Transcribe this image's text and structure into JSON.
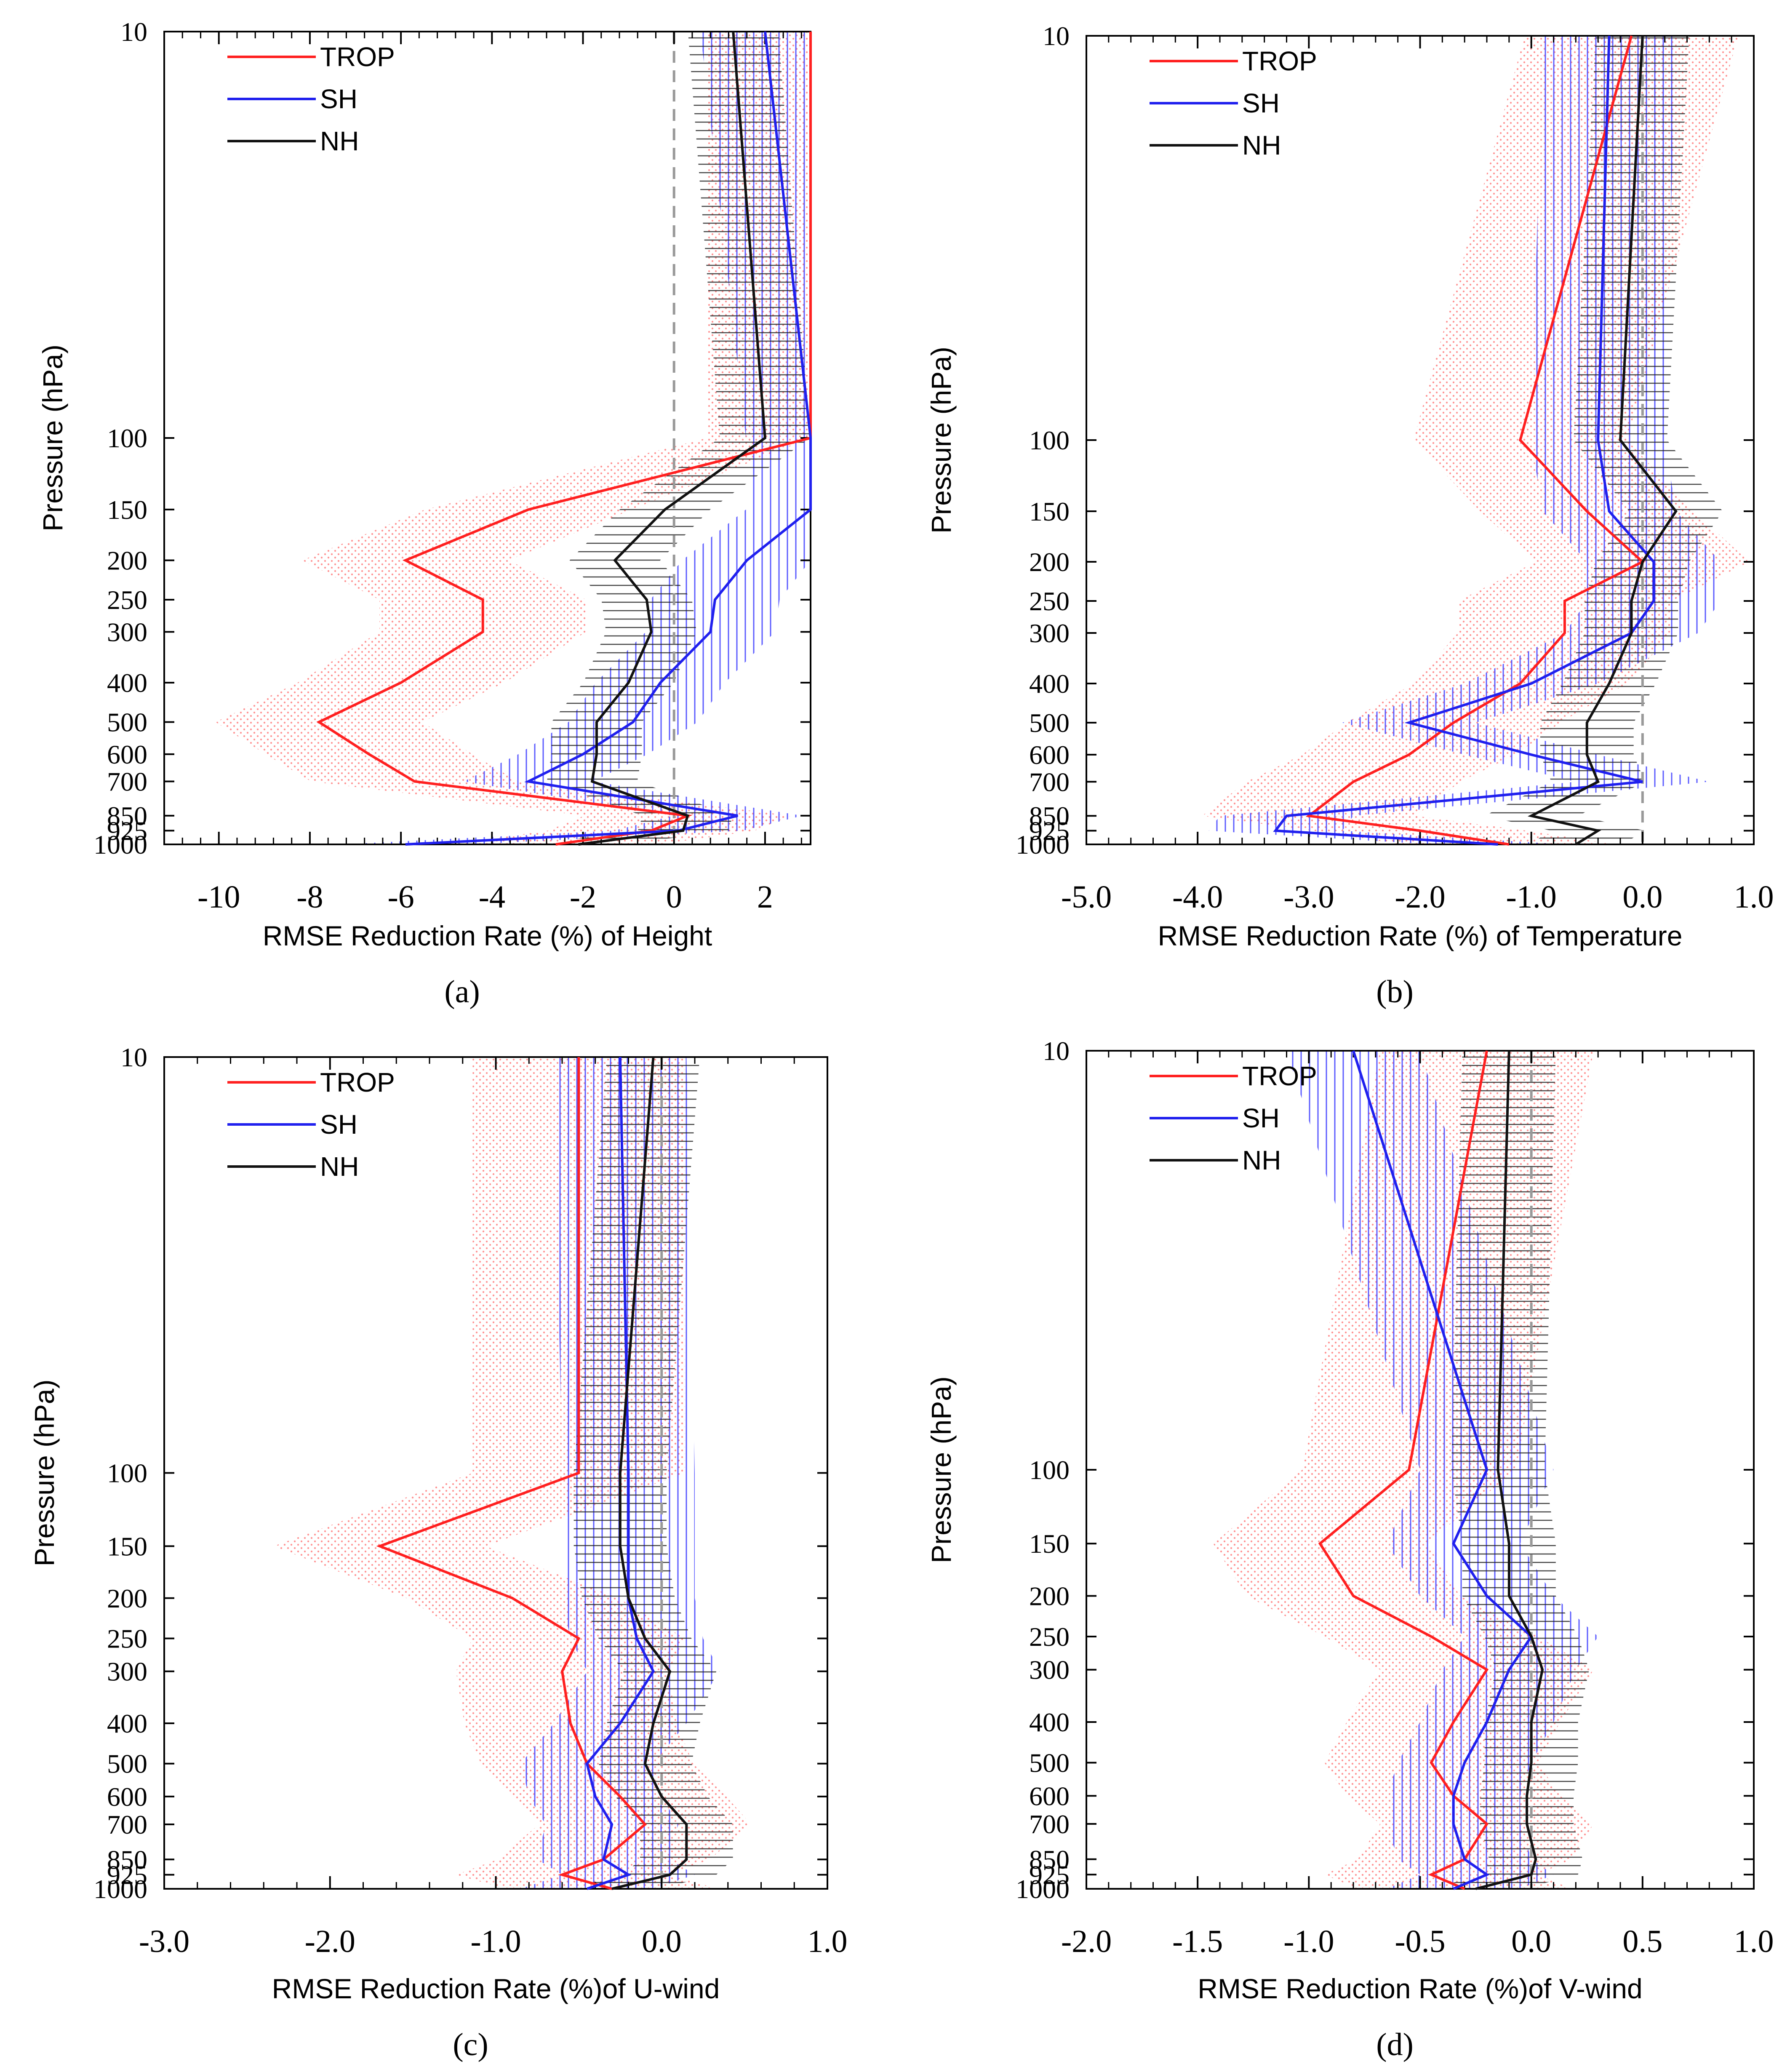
{
  "colors": {
    "TROP": "#ff2020",
    "SH": "#2020ee",
    "NH": "#111111",
    "trop_shade": "#ff8080",
    "sh_shade": "#4040ff",
    "nh_shade": "#222222",
    "zero_line": "#999999"
  },
  "chart_data": [
    {
      "type": "line",
      "panel": "(a)",
      "xlabel": "RMSE Reduction Rate (%) of Height",
      "ylabel": "Pressure (hPa)",
      "xlim": [
        -11.2,
        3.0
      ],
      "xticks": [
        -10,
        -8,
        -6,
        -4,
        -2,
        0,
        2
      ],
      "xtick_labels": [
        "-10",
        "-8",
        "-6",
        "-4",
        "-2",
        "0",
        "2"
      ],
      "pressure_levels": [
        10,
        100,
        150,
        200,
        250,
        300,
        400,
        500,
        600,
        700,
        850,
        925,
        1000
      ],
      "legend": [
        "TROP",
        "SH",
        "NH"
      ],
      "series": [
        {
          "name": "TROP",
          "x": [
            3.0,
            3.0,
            -3.2,
            -5.9,
            -4.2,
            -4.2,
            -6.0,
            -7.8,
            -6.7,
            -5.7,
            0.3,
            -0.5,
            -2.6
          ]
        },
        {
          "name": "SH",
          "x": [
            2.0,
            3.0,
            3.0,
            1.6,
            0.9,
            0.8,
            -0.3,
            -0.9,
            -2.0,
            -3.2,
            1.4,
            0.1,
            -5.9
          ]
        },
        {
          "name": "NH",
          "x": [
            1.3,
            2.0,
            -0.2,
            -1.3,
            -0.6,
            -0.5,
            -1.0,
            -1.7,
            -1.7,
            -1.8,
            0.3,
            0.2,
            -2.1
          ]
        }
      ]
    },
    {
      "type": "line",
      "panel": "(b)",
      "xlabel": "RMSE Reduction Rate (%) of Temperature",
      "ylabel": "Pressure (hPa)",
      "xlim": [
        -5.0,
        1.0
      ],
      "xticks": [
        -5,
        -4,
        -3,
        -2,
        -1,
        0,
        1
      ],
      "xtick_labels": [
        "-5.0",
        "-4.0",
        "-3.0",
        "-2.0",
        "-1.0",
        "0.0",
        "1.0"
      ],
      "pressure_levels": [
        10,
        100,
        150,
        200,
        250,
        300,
        400,
        500,
        600,
        700,
        850,
        925,
        1000
      ],
      "legend": [
        "TROP",
        "SH",
        "NH"
      ],
      "series": [
        {
          "name": "TROP",
          "x": [
            -0.1,
            -1.1,
            -0.5,
            0.0,
            -0.7,
            -0.7,
            -1.1,
            -1.7,
            -2.1,
            -2.6,
            -3.0,
            -2.0,
            -1.2
          ]
        },
        {
          "name": "SH",
          "x": [
            -0.3,
            -0.4,
            -0.3,
            0.1,
            0.1,
            -0.1,
            -1.0,
            -2.1,
            -1.0,
            0.0,
            -3.2,
            -3.3,
            -1.3
          ]
        },
        {
          "name": "NH",
          "x": [
            0.0,
            -0.2,
            0.3,
            0.0,
            -0.1,
            -0.1,
            -0.3,
            -0.5,
            -0.5,
            -0.4,
            -1.0,
            -0.4,
            -0.6
          ]
        }
      ]
    },
    {
      "type": "line",
      "panel": "(c)",
      "xlabel": "RMSE Reduction Rate (%)of U-wind",
      "ylabel": "Pressure (hPa)",
      "xlim": [
        -3.0,
        1.0
      ],
      "xticks": [
        -3,
        -2,
        -1,
        0,
        1
      ],
      "xtick_labels": [
        "-3.0",
        "-2.0",
        "-1.0",
        "0.0",
        "1.0"
      ],
      "pressure_levels": [
        10,
        100,
        150,
        200,
        250,
        300,
        400,
        500,
        600,
        700,
        850,
        925,
        1000
      ],
      "legend": [
        "TROP",
        "SH",
        "NH"
      ],
      "series": [
        {
          "name": "TROP",
          "x": [
            -0.5,
            -0.5,
            -1.7,
            -0.9,
            -0.5,
            -0.6,
            -0.55,
            -0.45,
            -0.25,
            -0.1,
            -0.35,
            -0.6,
            -0.3
          ]
        },
        {
          "name": "SH",
          "x": [
            -0.25,
            -0.2,
            -0.2,
            -0.2,
            -0.15,
            -0.05,
            -0.25,
            -0.45,
            -0.4,
            -0.3,
            -0.35,
            -0.2,
            -0.45
          ]
        },
        {
          "name": "NH",
          "x": [
            -0.05,
            -0.25,
            -0.25,
            -0.2,
            -0.1,
            0.05,
            -0.05,
            -0.1,
            0.0,
            0.15,
            0.15,
            0.05,
            -0.3
          ]
        }
      ]
    },
    {
      "type": "line",
      "panel": "(d)",
      "xlabel": "RMSE Reduction Rate (%)of V-wind",
      "ylabel": "Pressure (hPa)",
      "xlim": [
        -2.0,
        1.0
      ],
      "xticks": [
        -2,
        -1.5,
        -1,
        -0.5,
        0,
        0.5,
        1
      ],
      "xtick_labels": [
        "-2.0",
        "-1.5",
        "-1.0",
        "-0.5",
        "0.0",
        "0.5",
        "1.0"
      ],
      "pressure_levels": [
        10,
        100,
        150,
        200,
        250,
        300,
        400,
        500,
        600,
        700,
        850,
        925,
        1000
      ],
      "legend": [
        "TROP",
        "SH",
        "NH"
      ],
      "series": [
        {
          "name": "TROP",
          "x": [
            -0.2,
            -0.55,
            -0.95,
            -0.8,
            -0.45,
            -0.2,
            -0.35,
            -0.45,
            -0.35,
            -0.2,
            -0.3,
            -0.45,
            -0.3
          ]
        },
        {
          "name": "SH",
          "x": [
            -0.8,
            -0.2,
            -0.35,
            -0.2,
            0.0,
            -0.1,
            -0.2,
            -0.3,
            -0.35,
            -0.35,
            -0.3,
            -0.2,
            -0.35
          ]
        },
        {
          "name": "NH",
          "x": [
            -0.1,
            -0.15,
            -0.1,
            -0.1,
            0.0,
            0.05,
            0.0,
            0.0,
            -0.02,
            -0.02,
            0.02,
            0.0,
            -0.25
          ]
        }
      ]
    }
  ]
}
